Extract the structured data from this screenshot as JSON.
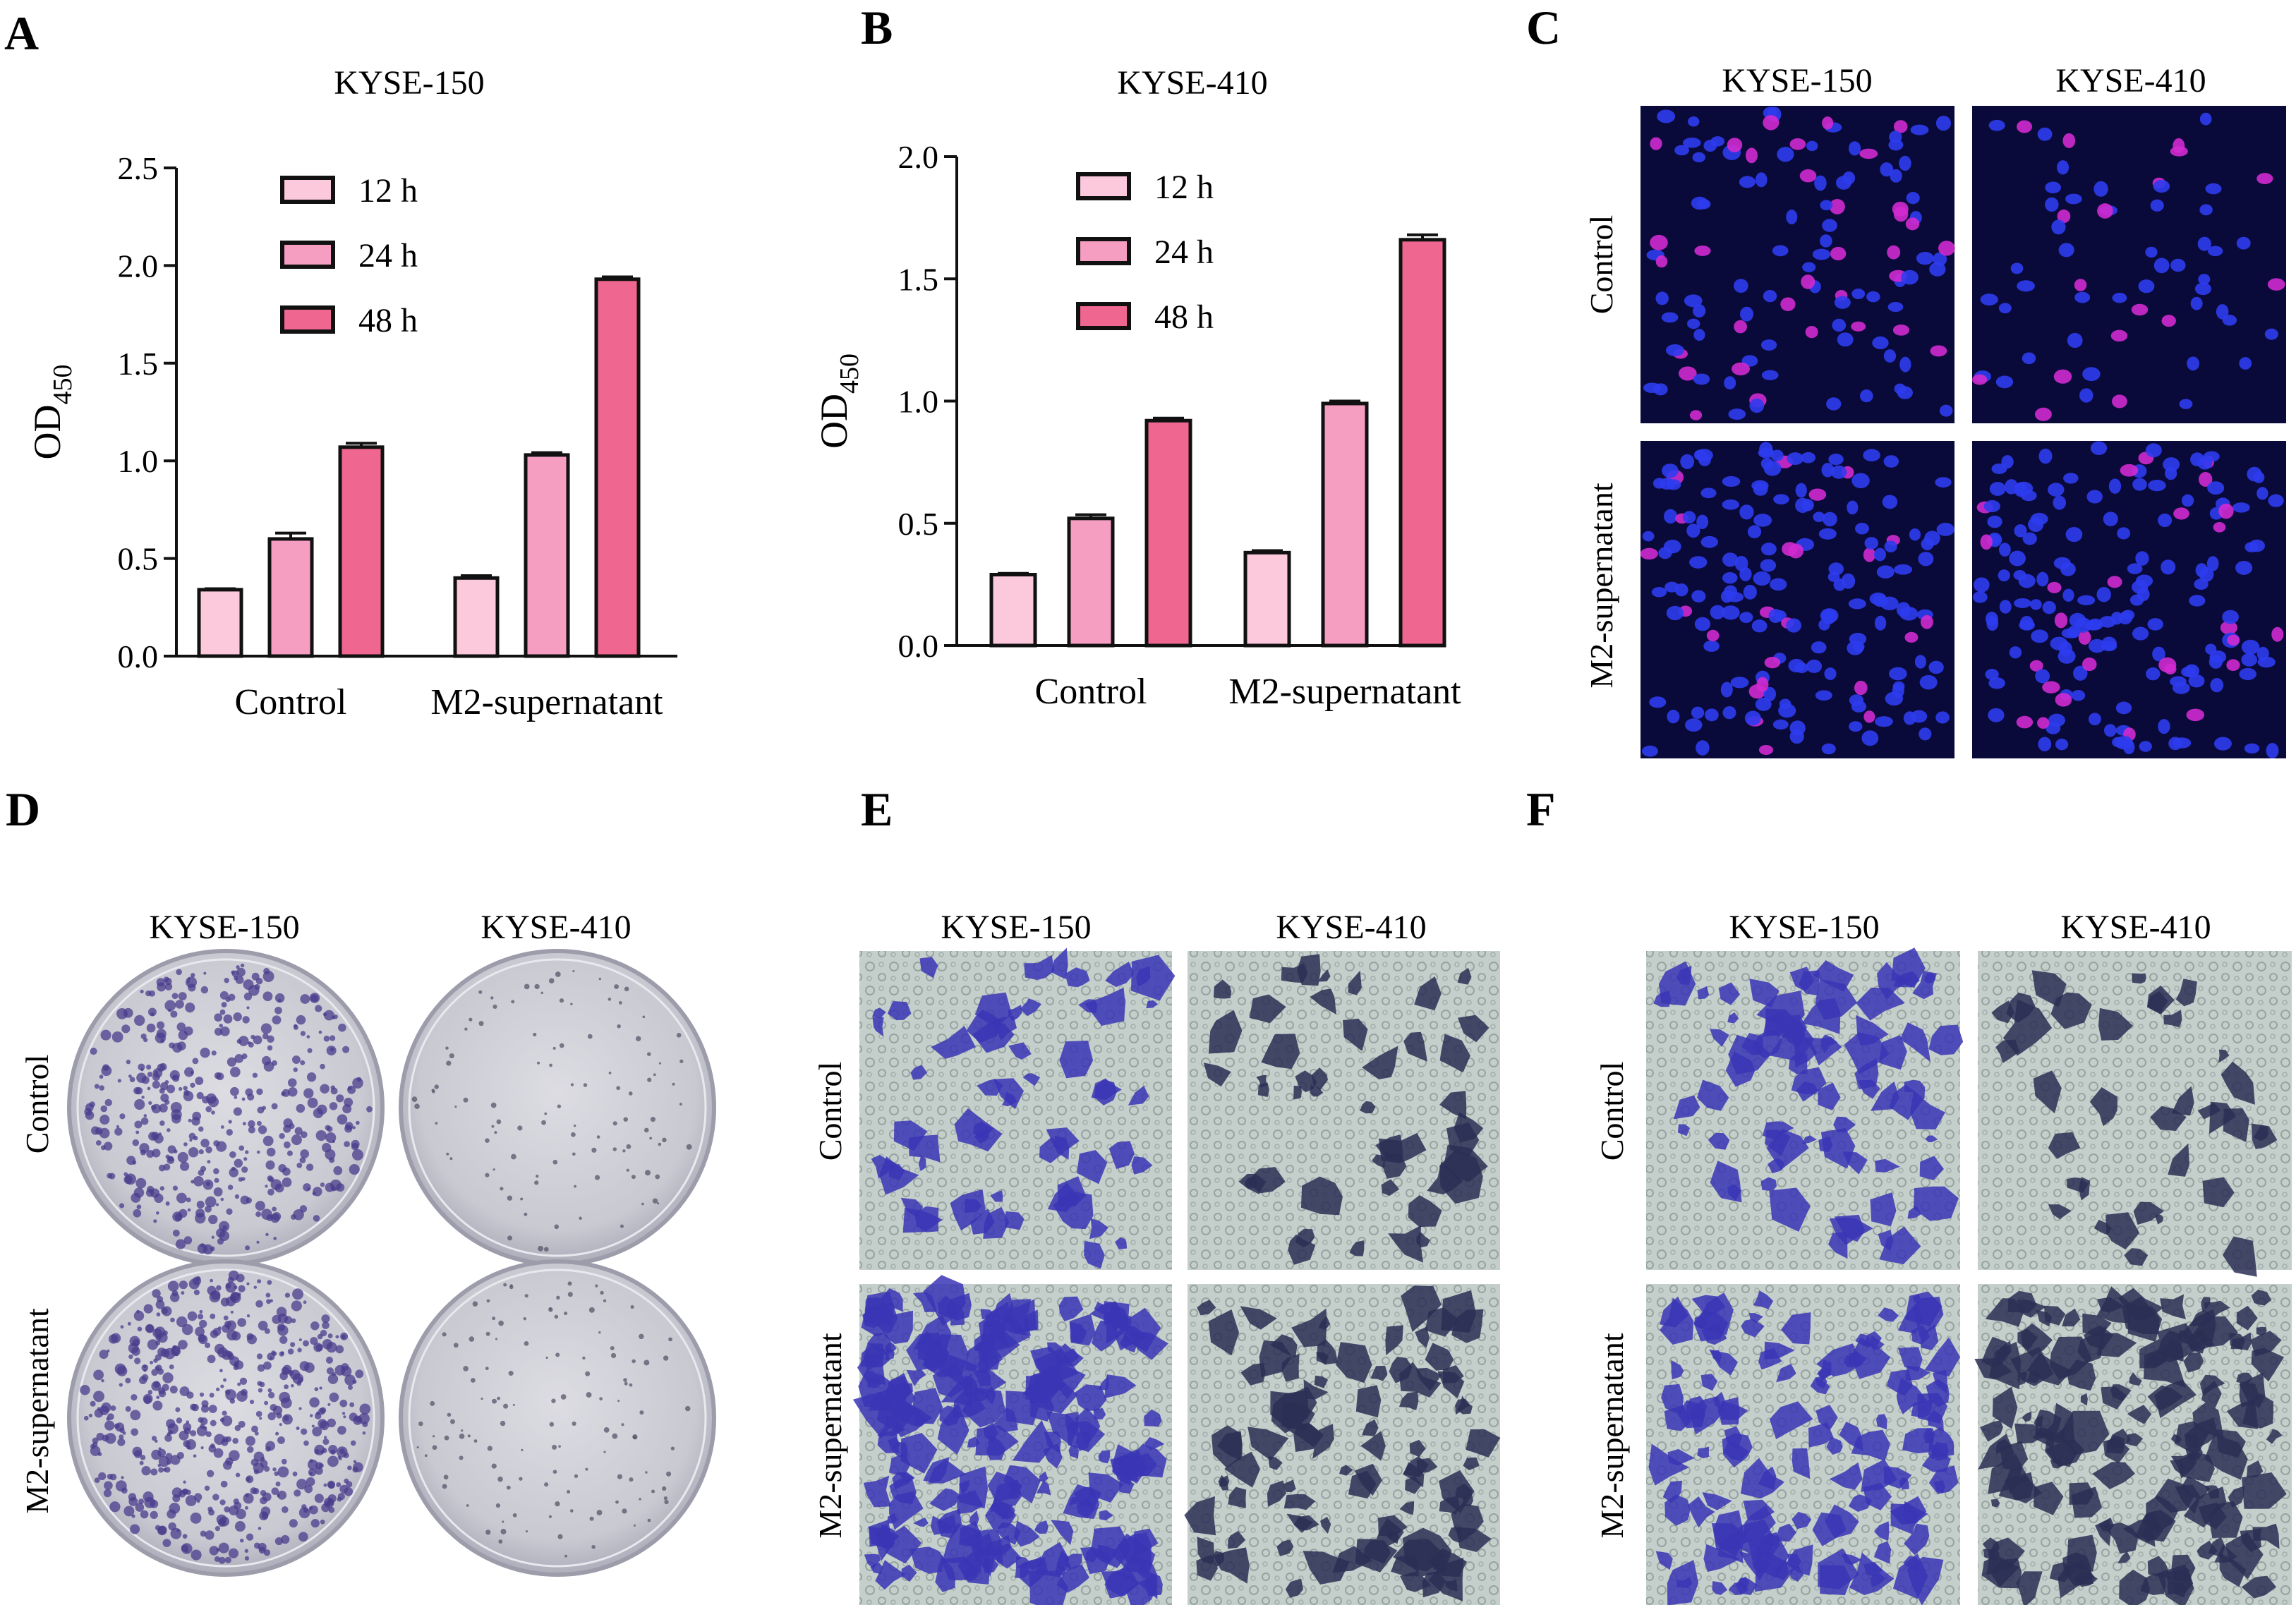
{
  "panels": {
    "A": {
      "label": "A"
    },
    "B": {
      "label": "B"
    },
    "C": {
      "label": "C",
      "columns": [
        "KYSE-150",
        "KYSE-410"
      ],
      "rows": [
        "Control",
        "M2-supernatant"
      ]
    },
    "D": {
      "label": "D",
      "columns": [
        "KYSE-150",
        "KYSE-410"
      ],
      "rows": [
        "Control",
        "M2-supernatant"
      ]
    },
    "E": {
      "label": "E",
      "columns": [
        "KYSE-150",
        "KYSE-410"
      ],
      "rows": [
        "Control",
        "M2-supernatant"
      ]
    },
    "F": {
      "label": "F",
      "columns": [
        "KYSE-150",
        "KYSE-410"
      ],
      "rows": [
        "Control",
        "M2-supernatant"
      ]
    }
  },
  "colors": {
    "h12": "#fbc8dc",
    "h24": "#f59ec2",
    "h48": "#ef6690",
    "edge": "#111111",
    "fluor_bg": "#0a0a3a",
    "nucleus": "#2e3cf0",
    "edu": "#d02ad0",
    "dish_bg": "#cfcfd6",
    "colony": "#4a3c8c",
    "transwell_bg": "#c4cfcb",
    "cell_stain": "#3a35b5"
  },
  "chart_data": [
    {
      "type": "bar",
      "panel": "A",
      "title": "KYSE-150",
      "ylabel": "OD",
      "ylabel_sub": "450",
      "categories": [
        "Control",
        "M2-supernatant"
      ],
      "series": [
        {
          "name": "12 h",
          "values": [
            0.34,
            0.4
          ],
          "errors": [
            0.005,
            0.012
          ]
        },
        {
          "name": "24 h",
          "values": [
            0.6,
            1.03
          ],
          "errors": [
            0.03,
            0.012
          ]
        },
        {
          "name": "48 h",
          "values": [
            1.07,
            1.93
          ],
          "errors": [
            0.02,
            0.012
          ]
        }
      ],
      "ylim": [
        0,
        2.5
      ],
      "yticks": [
        "0.0",
        "0.5",
        "1.0",
        "1.5",
        "2.0",
        "2.5"
      ],
      "legend": "top-left"
    },
    {
      "type": "bar",
      "panel": "B",
      "title": "KYSE-410",
      "ylabel": "OD",
      "ylabel_sub": "450",
      "categories": [
        "Control",
        "M2-supernatant"
      ],
      "series": [
        {
          "name": "12 h",
          "values": [
            0.29,
            0.38
          ],
          "errors": [
            0.005,
            0.008
          ]
        },
        {
          "name": "24 h",
          "values": [
            0.52,
            0.99
          ],
          "errors": [
            0.015,
            0.01
          ]
        },
        {
          "name": "48 h",
          "values": [
            0.92,
            1.66
          ],
          "errors": [
            0.01,
            0.02
          ]
        }
      ],
      "ylim": [
        0,
        2.0
      ],
      "yticks": [
        "0.0",
        "0.5",
        "1.0",
        "1.5",
        "2.0"
      ],
      "legend": "top-left"
    }
  ]
}
